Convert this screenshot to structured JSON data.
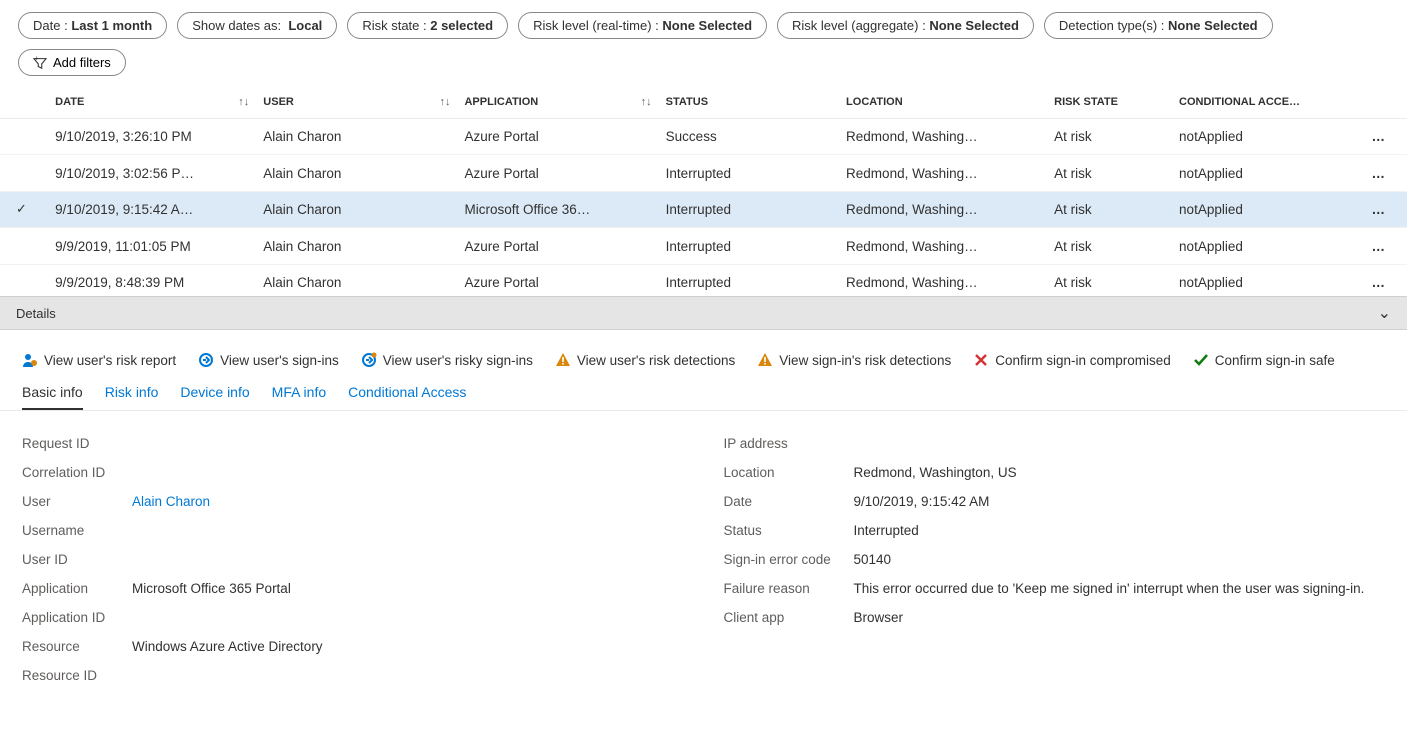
{
  "filters": {
    "date": {
      "label": "Date :",
      "value": "Last 1 month"
    },
    "show_dates_as": {
      "label": "Show dates as:",
      "value": "Local"
    },
    "risk_state": {
      "label": "Risk state :",
      "value": "2 selected"
    },
    "risk_level_rt": {
      "label": "Risk level (real-time) :",
      "value": "None Selected"
    },
    "risk_level_agg": {
      "label": "Risk level (aggregate) :",
      "value": "None Selected"
    },
    "detection_types": {
      "label": "Detection type(s) :",
      "value": "None Selected"
    },
    "add_filters_label": "Add filters"
  },
  "table": {
    "headers": {
      "date": "DATE",
      "user": "USER",
      "application": "APPLICATION",
      "status": "STATUS",
      "location": "LOCATION",
      "risk_state": "RISK STATE",
      "cond_access": "CONDITIONAL ACCE…"
    },
    "rows": [
      {
        "selected": false,
        "date": "9/10/2019, 3:26:10 PM",
        "user": "Alain Charon",
        "app": "Azure Portal",
        "status": "Success",
        "location": "Redmond, Washing…",
        "risk_state": "At risk",
        "cond_access": "notApplied"
      },
      {
        "selected": false,
        "date": "9/10/2019, 3:02:56 P…",
        "user": "Alain Charon",
        "app": "Azure Portal",
        "status": "Interrupted",
        "location": "Redmond, Washing…",
        "risk_state": "At risk",
        "cond_access": "notApplied"
      },
      {
        "selected": true,
        "date": "9/10/2019, 9:15:42 A…",
        "user": "Alain Charon",
        "app": "Microsoft Office 36…",
        "status": "Interrupted",
        "location": "Redmond, Washing…",
        "risk_state": "At risk",
        "cond_access": "notApplied"
      },
      {
        "selected": false,
        "date": "9/9/2019, 11:01:05 PM",
        "user": "Alain Charon",
        "app": "Azure Portal",
        "status": "Interrupted",
        "location": "Redmond, Washing…",
        "risk_state": "At risk",
        "cond_access": "notApplied"
      },
      {
        "selected": false,
        "date": "9/9/2019, 8:48:39 PM",
        "user": "Alain Charon",
        "app": "Azure Portal",
        "status": "Interrupted",
        "location": "Redmond, Washing…",
        "risk_state": "At risk",
        "cond_access": "notApplied"
      }
    ]
  },
  "details_bar": {
    "title": "Details"
  },
  "action_links": {
    "view_user_risk_report": "View user's risk report",
    "view_user_signins": "View user's sign-ins",
    "view_user_risky_signins": "View user's risky sign-ins",
    "view_user_risk_detections": "View user's risk detections",
    "view_signin_risk_detections": "View sign-in's risk detections",
    "confirm_compromised": "Confirm sign-in compromised",
    "confirm_safe": "Confirm sign-in safe"
  },
  "tabs": {
    "basic_info": "Basic info",
    "risk_info": "Risk info",
    "device_info": "Device info",
    "mfa_info": "MFA info",
    "conditional_access": "Conditional Access"
  },
  "basic_info": {
    "left": {
      "request_id": {
        "k": "Request ID",
        "v": ""
      },
      "correlation_id": {
        "k": "Correlation ID",
        "v": ""
      },
      "user": {
        "k": "User",
        "v": "Alain Charon",
        "link": true
      },
      "username": {
        "k": "Username",
        "v": ""
      },
      "user_id": {
        "k": "User ID",
        "v": ""
      },
      "application": {
        "k": "Application",
        "v": "Microsoft Office 365 Portal"
      },
      "application_id": {
        "k": "Application ID",
        "v": ""
      },
      "resource": {
        "k": "Resource",
        "v": "Windows Azure Active Directory"
      },
      "resource_id": {
        "k": "Resource ID",
        "v": ""
      }
    },
    "right": {
      "ip_address": {
        "k": "IP address",
        "v": ""
      },
      "location": {
        "k": "Location",
        "v": "Redmond, Washington, US"
      },
      "date": {
        "k": "Date",
        "v": "9/10/2019, 9:15:42 AM"
      },
      "status": {
        "k": "Status",
        "v": "Interrupted"
      },
      "error_code": {
        "k": "Sign-in error code",
        "v": "50140"
      },
      "failure_reason": {
        "k": "Failure reason",
        "v": "This error occurred due to 'Keep me signed in' interrupt when the user was signing-in."
      },
      "client_app": {
        "k": "Client app",
        "v": "Browser"
      }
    }
  },
  "colors": {
    "link": "#0078d4",
    "selected_row": "#dceaf7",
    "details_bar_bg": "#e5e5e5",
    "warn": "#d8870a",
    "danger": "#d13438",
    "success": "#107c10"
  }
}
